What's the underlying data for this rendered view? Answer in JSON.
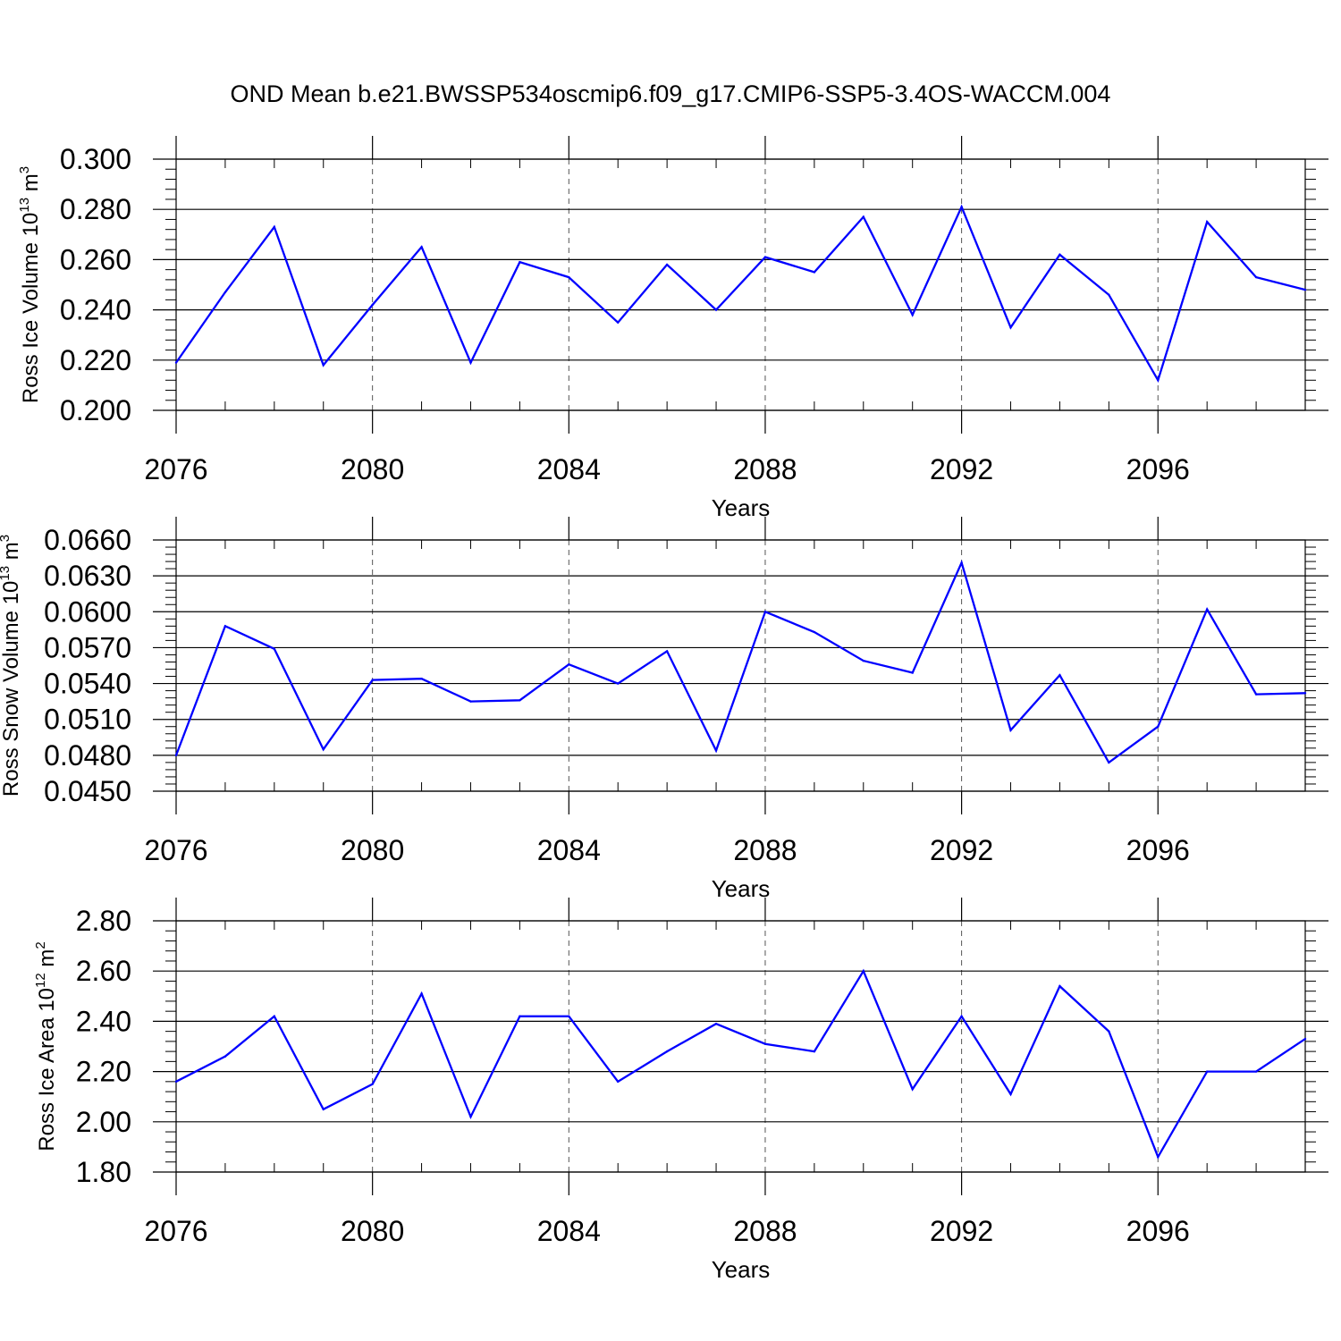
{
  "title": "OND Mean b.e21.BWSSP534oscmip6.f09_g17.CMIP6-SSP5-3.4OS-WACCM.004",
  "line_color": "#0000ff",
  "chart_data": [
    {
      "type": "line",
      "ylabel": {
        "base": "Ross Ice Volume 10",
        "exp": "13",
        "unit": " m",
        "unit_exp": "3"
      },
      "xlabel": "Years",
      "xlim": [
        2076,
        2099
      ],
      "ylim": [
        0.2,
        0.3
      ],
      "ytick_values": [
        0.2,
        0.22,
        0.24,
        0.26,
        0.28,
        0.3
      ],
      "ytick_labels": [
        "0.200",
        "0.220",
        "0.240",
        "0.260",
        "0.280",
        "0.300"
      ],
      "xtick_values": [
        2076,
        2080,
        2084,
        2088,
        2092,
        2096
      ],
      "xtick_labels": [
        "2076",
        "2080",
        "2084",
        "2088",
        "2092",
        "2096"
      ],
      "grid": "vertical dashed at major x ticks",
      "series": [
        {
          "x": [
            2076,
            2077,
            2078,
            2079,
            2080,
            2081,
            2082,
            2083,
            2084,
            2085,
            2086,
            2087,
            2088,
            2089,
            2090,
            2091,
            2092,
            2093,
            2094,
            2095,
            2096,
            2097,
            2098,
            2099
          ],
          "values": [
            0.219,
            0.247,
            0.273,
            0.218,
            0.242,
            0.265,
            0.219,
            0.259,
            0.253,
            0.235,
            0.258,
            0.24,
            0.261,
            0.255,
            0.277,
            0.238,
            0.281,
            0.233,
            0.262,
            0.246,
            0.212,
            0.275,
            0.253,
            0.248
          ]
        }
      ]
    },
    {
      "type": "line",
      "ylabel": {
        "base": "Ross Snow Volume 10",
        "exp": "13",
        "unit": " m",
        "unit_exp": "3"
      },
      "xlabel": "Years",
      "xlim": [
        2076,
        2099
      ],
      "ylim": [
        0.045,
        0.066
      ],
      "ytick_values": [
        0.045,
        0.048,
        0.051,
        0.054,
        0.057,
        0.06,
        0.063,
        0.066
      ],
      "ytick_labels": [
        "0.0450",
        "0.0480",
        "0.0510",
        "0.0540",
        "0.0570",
        "0.0600",
        "0.0630",
        "0.0660"
      ],
      "xtick_values": [
        2076,
        2080,
        2084,
        2088,
        2092,
        2096
      ],
      "xtick_labels": [
        "2076",
        "2080",
        "2084",
        "2088",
        "2092",
        "2096"
      ],
      "grid": "vertical dashed at major x ticks",
      "series": [
        {
          "x": [
            2076,
            2077,
            2078,
            2079,
            2080,
            2081,
            2082,
            2083,
            2084,
            2085,
            2086,
            2087,
            2088,
            2089,
            2090,
            2091,
            2092,
            2093,
            2094,
            2095,
            2096,
            2097,
            2098,
            2099
          ],
          "values": [
            0.048,
            0.0588,
            0.0569,
            0.0485,
            0.0543,
            0.0544,
            0.0525,
            0.0526,
            0.0556,
            0.054,
            0.0567,
            0.0484,
            0.06,
            0.0583,
            0.0559,
            0.0549,
            0.0641,
            0.0501,
            0.0547,
            0.0474,
            0.0504,
            0.0602,
            0.0531,
            0.0532
          ]
        }
      ]
    },
    {
      "type": "line",
      "ylabel": {
        "base": "Ross Ice Area 10",
        "exp": "12",
        "unit": " m",
        "unit_exp": "2"
      },
      "xlabel": "Years",
      "xlim": [
        2076,
        2099
      ],
      "ylim": [
        1.8,
        2.8
      ],
      "ytick_values": [
        1.8,
        2.0,
        2.2,
        2.4,
        2.6,
        2.8
      ],
      "ytick_labels": [
        "1.80",
        "2.00",
        "2.20",
        "2.40",
        "2.60",
        "2.80"
      ],
      "xtick_values": [
        2076,
        2080,
        2084,
        2088,
        2092,
        2096
      ],
      "xtick_labels": [
        "2076",
        "2080",
        "2084",
        "2088",
        "2092",
        "2096"
      ],
      "grid": "vertical dashed at major x ticks",
      "series": [
        {
          "x": [
            2076,
            2077,
            2078,
            2079,
            2080,
            2081,
            2082,
            2083,
            2084,
            2085,
            2086,
            2087,
            2088,
            2089,
            2090,
            2091,
            2092,
            2093,
            2094,
            2095,
            2096,
            2097,
            2098,
            2099
          ],
          "values": [
            2.16,
            2.26,
            2.42,
            2.05,
            2.15,
            2.51,
            2.02,
            2.42,
            2.42,
            2.16,
            2.28,
            2.39,
            2.31,
            2.28,
            2.6,
            2.13,
            2.42,
            2.11,
            2.54,
            2.36,
            1.86,
            2.2,
            2.2,
            2.33
          ]
        }
      ]
    }
  ]
}
